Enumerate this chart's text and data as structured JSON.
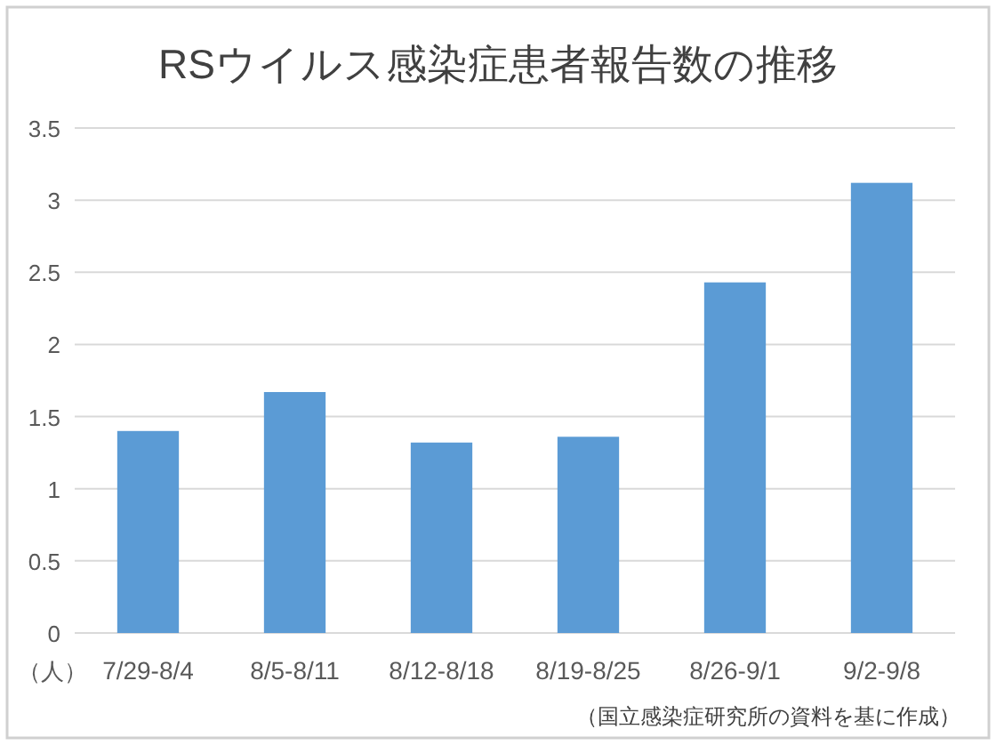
{
  "chart_data": {
    "type": "bar",
    "title": "RSウイルス感染症患者報告数の推移",
    "ylabel": "（人）",
    "categories": [
      "7/29-8/4",
      "8/5-8/11",
      "8/12-8/18",
      "8/19-8/25",
      "8/26-9/1",
      "9/2-9/8"
    ],
    "values": [
      1.4,
      1.67,
      1.32,
      1.36,
      2.43,
      3.12
    ],
    "color": "#5b9bd5",
    "ylim": [
      0,
      3.5
    ],
    "yticks": [
      0,
      0.5,
      1,
      1.5,
      2,
      2.5,
      3,
      3.5
    ],
    "grid": "y",
    "annotations": [
      "（国立感染症研究所の資料を基に作成）"
    ]
  }
}
